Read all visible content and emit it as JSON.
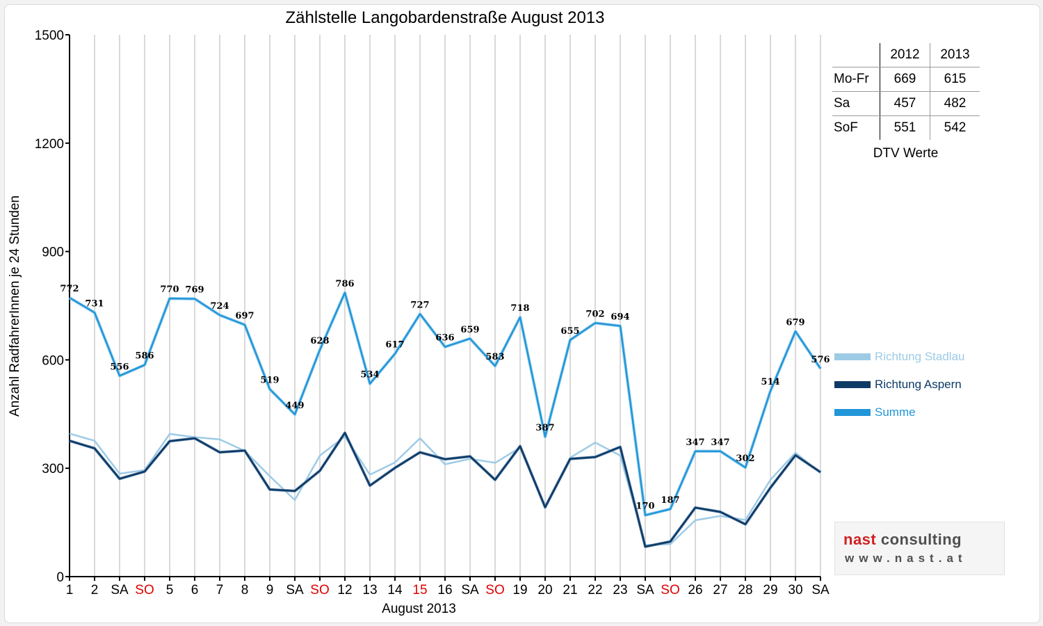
{
  "chart_data": {
    "type": "line",
    "title": "Zählstelle Langobardenstraße August 2013",
    "xlabel": "August 2013",
    "ylabel": "Anzahl RadfahrerInnen je 24 Stunden",
    "ylim": [
      0,
      1500
    ],
    "yticks": [
      "0",
      "300",
      "600",
      "900",
      "1200",
      "1500"
    ],
    "grid": "vertical",
    "legend_position": "right",
    "categories": [
      "1",
      "2",
      "SA",
      "SO",
      "5",
      "6",
      "7",
      "8",
      "9",
      "SA",
      "SO",
      "12",
      "13",
      "14",
      "15",
      "16",
      "SA",
      "SO",
      "19",
      "20",
      "21",
      "22",
      "23",
      "SA",
      "SO",
      "26",
      "27",
      "28",
      "29",
      "30",
      "SA"
    ],
    "highlight_categories": [
      3,
      10,
      14,
      17,
      24
    ],
    "series": [
      {
        "name": "Richtung Stadlau",
        "color": "#9dcbe6",
        "values": [
          396,
          376,
          285,
          295,
          395,
          386,
          380,
          348,
          278,
          212,
          335,
          388,
          282,
          316,
          383,
          311,
          326,
          315,
          357,
          195,
          329,
          371,
          335,
          87,
          90,
          156,
          168,
          157,
          268,
          343,
          287
        ]
      },
      {
        "name": "Richtung Aspern",
        "color": "#0e3a66",
        "values": [
          376,
          355,
          271,
          291,
          375,
          383,
          344,
          349,
          241,
          237,
          293,
          398,
          252,
          301,
          344,
          325,
          333,
          268,
          361,
          192,
          326,
          331,
          359,
          83,
          97,
          191,
          179,
          145,
          246,
          336,
          289
        ]
      },
      {
        "name": "Summe",
        "color": "#2196d8",
        "values": [
          772,
          731,
          556,
          586,
          770,
          769,
          724,
          697,
          519,
          449,
          628,
          786,
          534,
          617,
          727,
          636,
          659,
          583,
          718,
          387,
          655,
          702,
          694,
          170,
          187,
          347,
          347,
          302,
          514,
          679,
          576
        ]
      }
    ],
    "data_labels": [
      "772",
      "731",
      "556",
      "586",
      "770",
      "769",
      "724",
      "697",
      "519",
      "449",
      "628",
      "786",
      "534",
      "617",
      "727",
      "636",
      "659",
      "583",
      "718",
      "387",
      "655",
      "702",
      "694",
      "170",
      "187",
      "347",
      "347",
      "302",
      "514",
      "679",
      "576"
    ]
  },
  "dtv_table": {
    "headers": [
      "",
      "2012",
      "2013"
    ],
    "rows": [
      {
        "label": "Mo-Fr",
        "v2012": "669",
        "v2013": "615"
      },
      {
        "label": "Sa",
        "v2012": "457",
        "v2013": "482"
      },
      {
        "label": "SoF",
        "v2012": "551",
        "v2013": "542"
      }
    ],
    "caption": "DTV Werte"
  },
  "logo": {
    "word1": "nast",
    "word2": "consulting",
    "url": "www.nast.at",
    "color_red": "#d11f1f",
    "color_grey": "#505050"
  },
  "colors": {
    "highlight": "#e00000",
    "background": "#f2f2f2"
  }
}
